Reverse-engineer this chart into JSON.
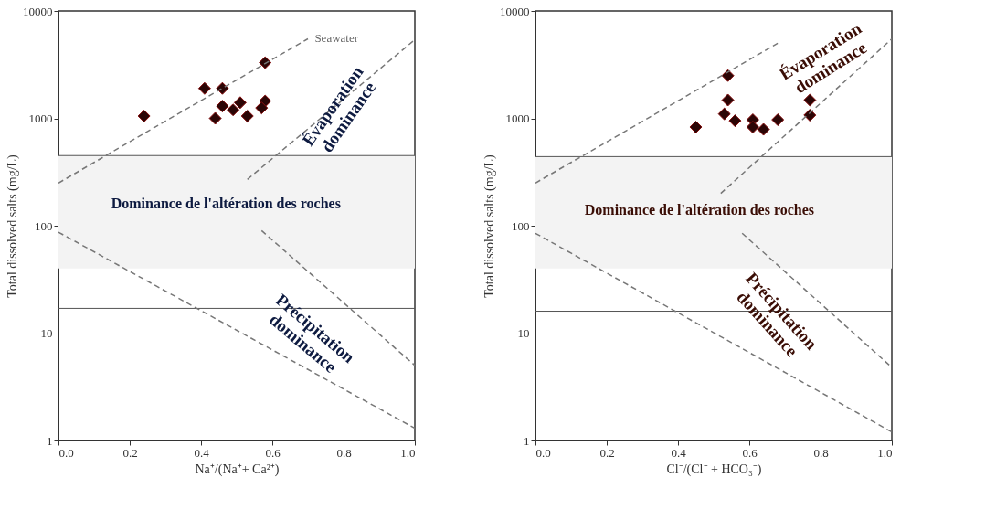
{
  "chart_data": [
    {
      "type": "scatter",
      "xlabel": "Na⁺/(Na⁺+ Ca²⁺)",
      "ylabel": "Total dissolved salts (mg/L)",
      "xlim": [
        0,
        1
      ],
      "ylim": [
        1,
        10000
      ],
      "xticks": [
        {
          "value": 0,
          "label": "0.0"
        },
        {
          "value": 0.2,
          "label": "0.2"
        },
        {
          "value": 0.4,
          "label": "0.4"
        },
        {
          "value": 0.6,
          "label": "0.6"
        },
        {
          "value": 0.8,
          "label": "0.8"
        },
        {
          "value": 1,
          "label": "1.0"
        }
      ],
      "yticks": [
        1,
        10,
        100,
        1000,
        10000
      ],
      "log": "y",
      "grid": false,
      "series": [
        {
          "marker": "diamond",
          "color": "#2b0505",
          "x": [
            0.24,
            0.41,
            0.46,
            0.58,
            0.46,
            0.51,
            0.58,
            0.44,
            0.53,
            0.57,
            0.49
          ],
          "values": [
            1050,
            1900,
            1900,
            3300,
            1300,
            1400,
            1450,
            1000,
            1050,
            1250,
            1200
          ]
        },
        {
          "type": "line",
          "line_style": "dashed",
          "color": "#777777",
          "x": [
            0,
            0.7
          ],
          "values": [
            250,
            5500
          ]
        },
        {
          "type": "line",
          "line_style": "dashed",
          "color": "#777777",
          "x": [
            0.53,
            1
          ],
          "values": [
            270,
            5400
          ]
        },
        {
          "type": "line",
          "line_style": "dashed",
          "color": "#777777",
          "x": [
            0,
            1
          ],
          "values": [
            87,
            1.3
          ]
        },
        {
          "type": "line",
          "line_style": "dashed",
          "color": "#777777",
          "x": [
            0.57,
            1
          ],
          "values": [
            90,
            5
          ]
        }
      ],
      "bands": [
        {
          "axis": "y",
          "from": 40,
          "to": 450,
          "color": "#f3f3f3"
        }
      ],
      "ref_lines": [
        {
          "axis": "y",
          "value": 450,
          "color": "#555555"
        },
        {
          "axis": "y",
          "value": 17,
          "color": "#555555"
        }
      ],
      "annotations": [
        "Évaporation dominance",
        "Dominance de l'altération des roches",
        "Précipitation dominance",
        "Seawater"
      ]
    },
    {
      "type": "scatter",
      "xlabel": "Cl⁻/(Cl⁻ + HCO₃⁻)",
      "ylabel": "Total dissolved salts (mg/L)",
      "xlim": [
        0,
        1
      ],
      "ylim": [
        1,
        10000
      ],
      "xticks": [
        {
          "value": 0,
          "label": "0.0"
        },
        {
          "value": 0.2,
          "label": "0.2"
        },
        {
          "value": 0.4,
          "label": "0.4"
        },
        {
          "value": 0.6,
          "label": "0.6"
        },
        {
          "value": 0.8,
          "label": "0.8"
        },
        {
          "value": 1,
          "label": "1.0"
        }
      ],
      "yticks": [
        1,
        10,
        100,
        1000,
        10000
      ],
      "log": "y",
      "grid": false,
      "series": [
        {
          "marker": "diamond",
          "color": "#2b0505",
          "x": [
            0.54,
            0.54,
            0.53,
            0.56,
            0.45,
            0.61,
            0.61,
            0.64,
            0.68,
            0.77,
            0.77
          ],
          "values": [
            2500,
            1480,
            1100,
            950,
            830,
            970,
            830,
            790,
            970,
            1480,
            1070
          ]
        },
        {
          "type": "line",
          "line_style": "dashed",
          "color": "#777777",
          "x": [
            0,
            0.68
          ],
          "values": [
            250,
            5000
          ]
        },
        {
          "type": "line",
          "line_style": "dashed",
          "color": "#777777",
          "x": [
            0.52,
            1
          ],
          "values": [
            200,
            5500
          ]
        },
        {
          "type": "line",
          "line_style": "dashed",
          "color": "#777777",
          "x": [
            0,
            1
          ],
          "values": [
            85,
            1.2
          ]
        },
        {
          "type": "line",
          "line_style": "dashed",
          "color": "#777777",
          "x": [
            0.58,
            1
          ],
          "values": [
            85,
            4.8
          ]
        }
      ],
      "bands": [
        {
          "axis": "y",
          "from": 40,
          "to": 440,
          "color": "#f3f3f3"
        }
      ],
      "ref_lines": [
        {
          "axis": "y",
          "value": 440,
          "color": "#555555"
        },
        {
          "axis": "y",
          "value": 16,
          "color": "#555555"
        }
      ],
      "annotations": [
        "Évaporation dominance",
        "Dominance de l'altération des roches",
        "Précipitation dominance"
      ]
    }
  ]
}
